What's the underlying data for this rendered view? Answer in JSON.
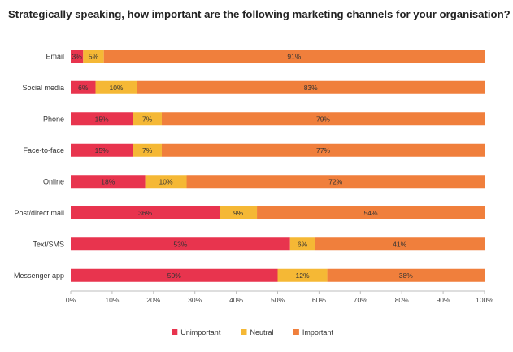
{
  "chart_data": {
    "type": "bar",
    "orientation": "horizontal",
    "stacked": true,
    "title": "Strategically speaking, how important are the following marketing channels for your organisation?",
    "categories": [
      "Email",
      "Social media",
      "Phone",
      "Face-to-face",
      "Online",
      "Post/direct mail",
      "Text/SMS",
      "Messenger app"
    ],
    "series": [
      {
        "name": "Unimportant",
        "color": "#e8344e",
        "values": [
          3,
          6,
          15,
          15,
          18,
          36,
          53,
          50
        ]
      },
      {
        "name": "Neutral",
        "color": "#f5b835",
        "values": [
          5,
          10,
          7,
          7,
          10,
          9,
          6,
          12
        ]
      },
      {
        "name": "Important",
        "color": "#f07f3c",
        "values": [
          91,
          83,
          79,
          77,
          72,
          54,
          41,
          38
        ]
      }
    ],
    "xlim": [
      0,
      100
    ],
    "xticks": [
      "0%",
      "10%",
      "20%",
      "30%",
      "40%",
      "50%",
      "60%",
      "70%",
      "80%",
      "90%",
      "100%"
    ],
    "xlabel": "",
    "ylabel": "",
    "legend": "bottom-center"
  }
}
